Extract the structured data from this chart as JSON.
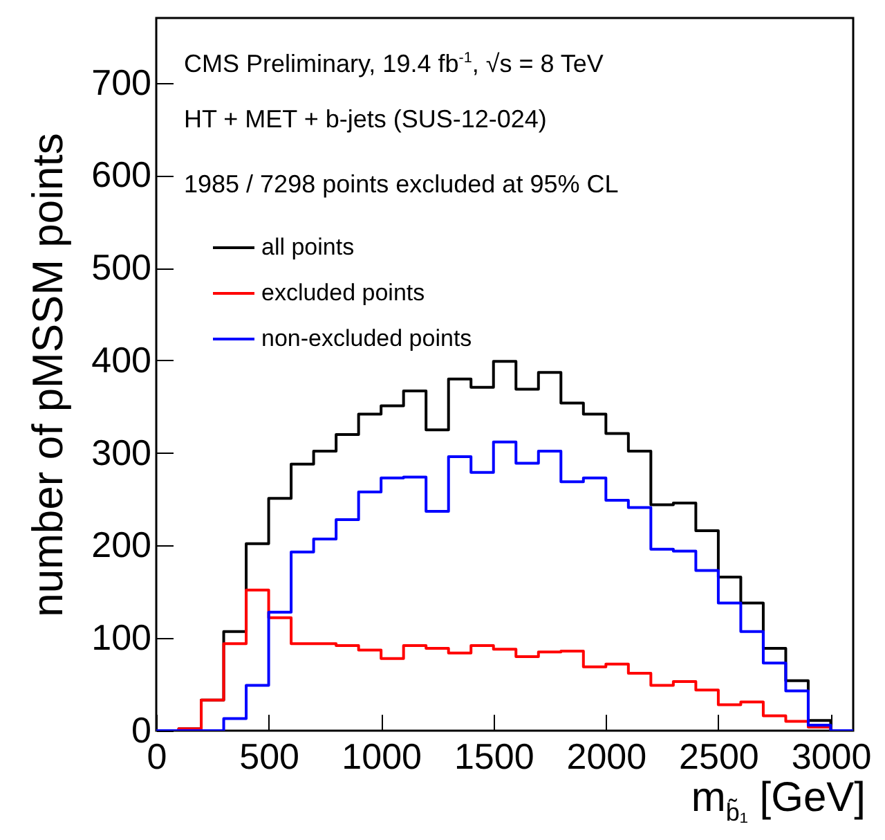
{
  "chart_data": {
    "type": "histogram",
    "xlabel": "m$_{b̃₁}$ [GeV]",
    "ylabel": "number of pMSSM points",
    "annotations": [
      "CMS Preliminary, 19.4 fb$^{-1}$, √s = 8 TeV",
      "HT + MET + b-jets (SUS-12-024)",
      "1985 / 7298 points excluded at 95% CL"
    ],
    "bins": [
      0,
      100,
      200,
      300,
      400,
      500,
      600,
      700,
      800,
      900,
      1000,
      1100,
      1200,
      1300,
      1400,
      1500,
      1600,
      1700,
      1800,
      1900,
      2000,
      2100,
      2200,
      2300,
      2400,
      2500,
      2600,
      2700,
      2800,
      2900,
      3000,
      3100
    ],
    "series": [
      {
        "name": "all points",
        "color": "#000000",
        "values": [
          0,
          2,
          33,
          107,
          202,
          251,
          288,
          302,
          320,
          342,
          351,
          367,
          325,
          380,
          371,
          399,
          369,
          387,
          354,
          342,
          321,
          302,
          244,
          246,
          216,
          166,
          138,
          89,
          54,
          11,
          0
        ]
      },
      {
        "name": "excluded points",
        "color": "#ff0000",
        "values": [
          0,
          2,
          33,
          94,
          152,
          122,
          94,
          94,
          92,
          87,
          78,
          92,
          89,
          84,
          92,
          88,
          80,
          85,
          86,
          69,
          72,
          62,
          49,
          53,
          44,
          28,
          31,
          16,
          10,
          4,
          0
        ]
      },
      {
        "name": "non-excluded points",
        "color": "#0000ff",
        "values": [
          0,
          0,
          0,
          13,
          49,
          128,
          193,
          207,
          228,
          258,
          273,
          274,
          237,
          296,
          279,
          312,
          289,
          302,
          269,
          273,
          249,
          241,
          196,
          194,
          173,
          138,
          107,
          73,
          43,
          6,
          0
        ]
      }
    ],
    "xlim": [
      0,
      3100
    ],
    "ylim": [
      0,
      770
    ],
    "xticks": [
      0,
      500,
      1000,
      1500,
      2000,
      2500,
      3000
    ],
    "yticks": [
      0,
      100,
      200,
      300,
      400,
      500,
      600,
      700
    ],
    "legend": "top left"
  }
}
